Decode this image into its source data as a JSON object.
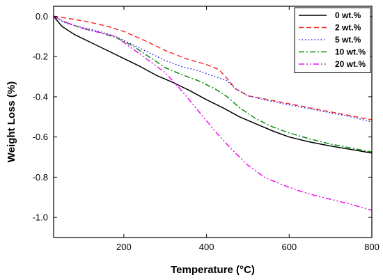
{
  "chart_data": {
    "type": "line",
    "xlabel": "Temperature (°C)",
    "ylabel": "Weight Loss (%)",
    "xlim": [
      30,
      800
    ],
    "ylim": [
      -1.1,
      0.05
    ],
    "x_ticks": [
      200,
      400,
      600,
      800
    ],
    "x_tick_labels": [
      "200",
      "400",
      "600",
      "800"
    ],
    "y_ticks": [
      0.0,
      -0.2,
      -0.4,
      -0.6,
      -0.8,
      -1.0
    ],
    "y_tick_labels": [
      "0.0",
      "-0.2",
      "-0.4",
      "-0.6",
      "-0.8",
      "-1.0"
    ],
    "legend_position": "top-right",
    "series": [
      {
        "name": "0 wt.%",
        "color": "#000000",
        "dash": "solid",
        "points": [
          [
            30,
            0.0
          ],
          [
            50,
            -0.05
          ],
          [
            80,
            -0.09
          ],
          [
            120,
            -0.13
          ],
          [
            160,
            -0.17
          ],
          [
            200,
            -0.21
          ],
          [
            240,
            -0.25
          ],
          [
            280,
            -0.295
          ],
          [
            320,
            -0.33
          ],
          [
            360,
            -0.37
          ],
          [
            400,
            -0.415
          ],
          [
            440,
            -0.455
          ],
          [
            480,
            -0.5
          ],
          [
            520,
            -0.535
          ],
          [
            560,
            -0.57
          ],
          [
            600,
            -0.6
          ],
          [
            650,
            -0.625
          ],
          [
            700,
            -0.645
          ],
          [
            750,
            -0.662
          ],
          [
            800,
            -0.68
          ]
        ]
      },
      {
        "name": "2 wt.%",
        "color": "#ff2a2a",
        "dash": "dashed",
        "points": [
          [
            30,
            0.0
          ],
          [
            80,
            -0.015
          ],
          [
            120,
            -0.03
          ],
          [
            160,
            -0.05
          ],
          [
            200,
            -0.075
          ],
          [
            250,
            -0.12
          ],
          [
            300,
            -0.17
          ],
          [
            350,
            -0.21
          ],
          [
            400,
            -0.24
          ],
          [
            430,
            -0.265
          ],
          [
            450,
            -0.31
          ],
          [
            470,
            -0.36
          ],
          [
            500,
            -0.395
          ],
          [
            550,
            -0.415
          ],
          [
            600,
            -0.435
          ],
          [
            650,
            -0.455
          ],
          [
            700,
            -0.475
          ],
          [
            750,
            -0.495
          ],
          [
            800,
            -0.515
          ]
        ]
      },
      {
        "name": "5 wt.%",
        "color": "#2222ee",
        "dash": "dotted",
        "points": [
          [
            30,
            0.0
          ],
          [
            60,
            -0.035
          ],
          [
            100,
            -0.055
          ],
          [
            140,
            -0.075
          ],
          [
            180,
            -0.1
          ],
          [
            220,
            -0.14
          ],
          [
            260,
            -0.18
          ],
          [
            300,
            -0.22
          ],
          [
            340,
            -0.25
          ],
          [
            380,
            -0.27
          ],
          [
            420,
            -0.3
          ],
          [
            450,
            -0.32
          ],
          [
            470,
            -0.36
          ],
          [
            500,
            -0.395
          ],
          [
            550,
            -0.42
          ],
          [
            600,
            -0.44
          ],
          [
            650,
            -0.46
          ],
          [
            700,
            -0.48
          ],
          [
            750,
            -0.5
          ],
          [
            800,
            -0.525
          ]
        ]
      },
      {
        "name": "10 wt.%",
        "color": "#0a8a0a",
        "dash": "dashdot",
        "points": [
          [
            30,
            0.0
          ],
          [
            60,
            -0.03
          ],
          [
            100,
            -0.06
          ],
          [
            140,
            -0.08
          ],
          [
            180,
            -0.105
          ],
          [
            220,
            -0.145
          ],
          [
            260,
            -0.2
          ],
          [
            300,
            -0.255
          ],
          [
            340,
            -0.29
          ],
          [
            380,
            -0.32
          ],
          [
            420,
            -0.36
          ],
          [
            450,
            -0.4
          ],
          [
            480,
            -0.455
          ],
          [
            520,
            -0.51
          ],
          [
            560,
            -0.55
          ],
          [
            600,
            -0.58
          ],
          [
            650,
            -0.61
          ],
          [
            700,
            -0.635
          ],
          [
            750,
            -0.655
          ],
          [
            800,
            -0.675
          ]
        ]
      },
      {
        "name": "20 wt.%",
        "color": "#ee11ee",
        "dash": "dashdotdot",
        "points": [
          [
            30,
            0.0
          ],
          [
            60,
            -0.03
          ],
          [
            100,
            -0.06
          ],
          [
            140,
            -0.08
          ],
          [
            180,
            -0.1
          ],
          [
            220,
            -0.16
          ],
          [
            260,
            -0.22
          ],
          [
            300,
            -0.28
          ],
          [
            340,
            -0.37
          ],
          [
            380,
            -0.47
          ],
          [
            420,
            -0.57
          ],
          [
            460,
            -0.66
          ],
          [
            500,
            -0.74
          ],
          [
            540,
            -0.8
          ],
          [
            580,
            -0.835
          ],
          [
            620,
            -0.865
          ],
          [
            660,
            -0.89
          ],
          [
            700,
            -0.91
          ],
          [
            750,
            -0.935
          ],
          [
            800,
            -0.965
          ]
        ]
      }
    ]
  }
}
